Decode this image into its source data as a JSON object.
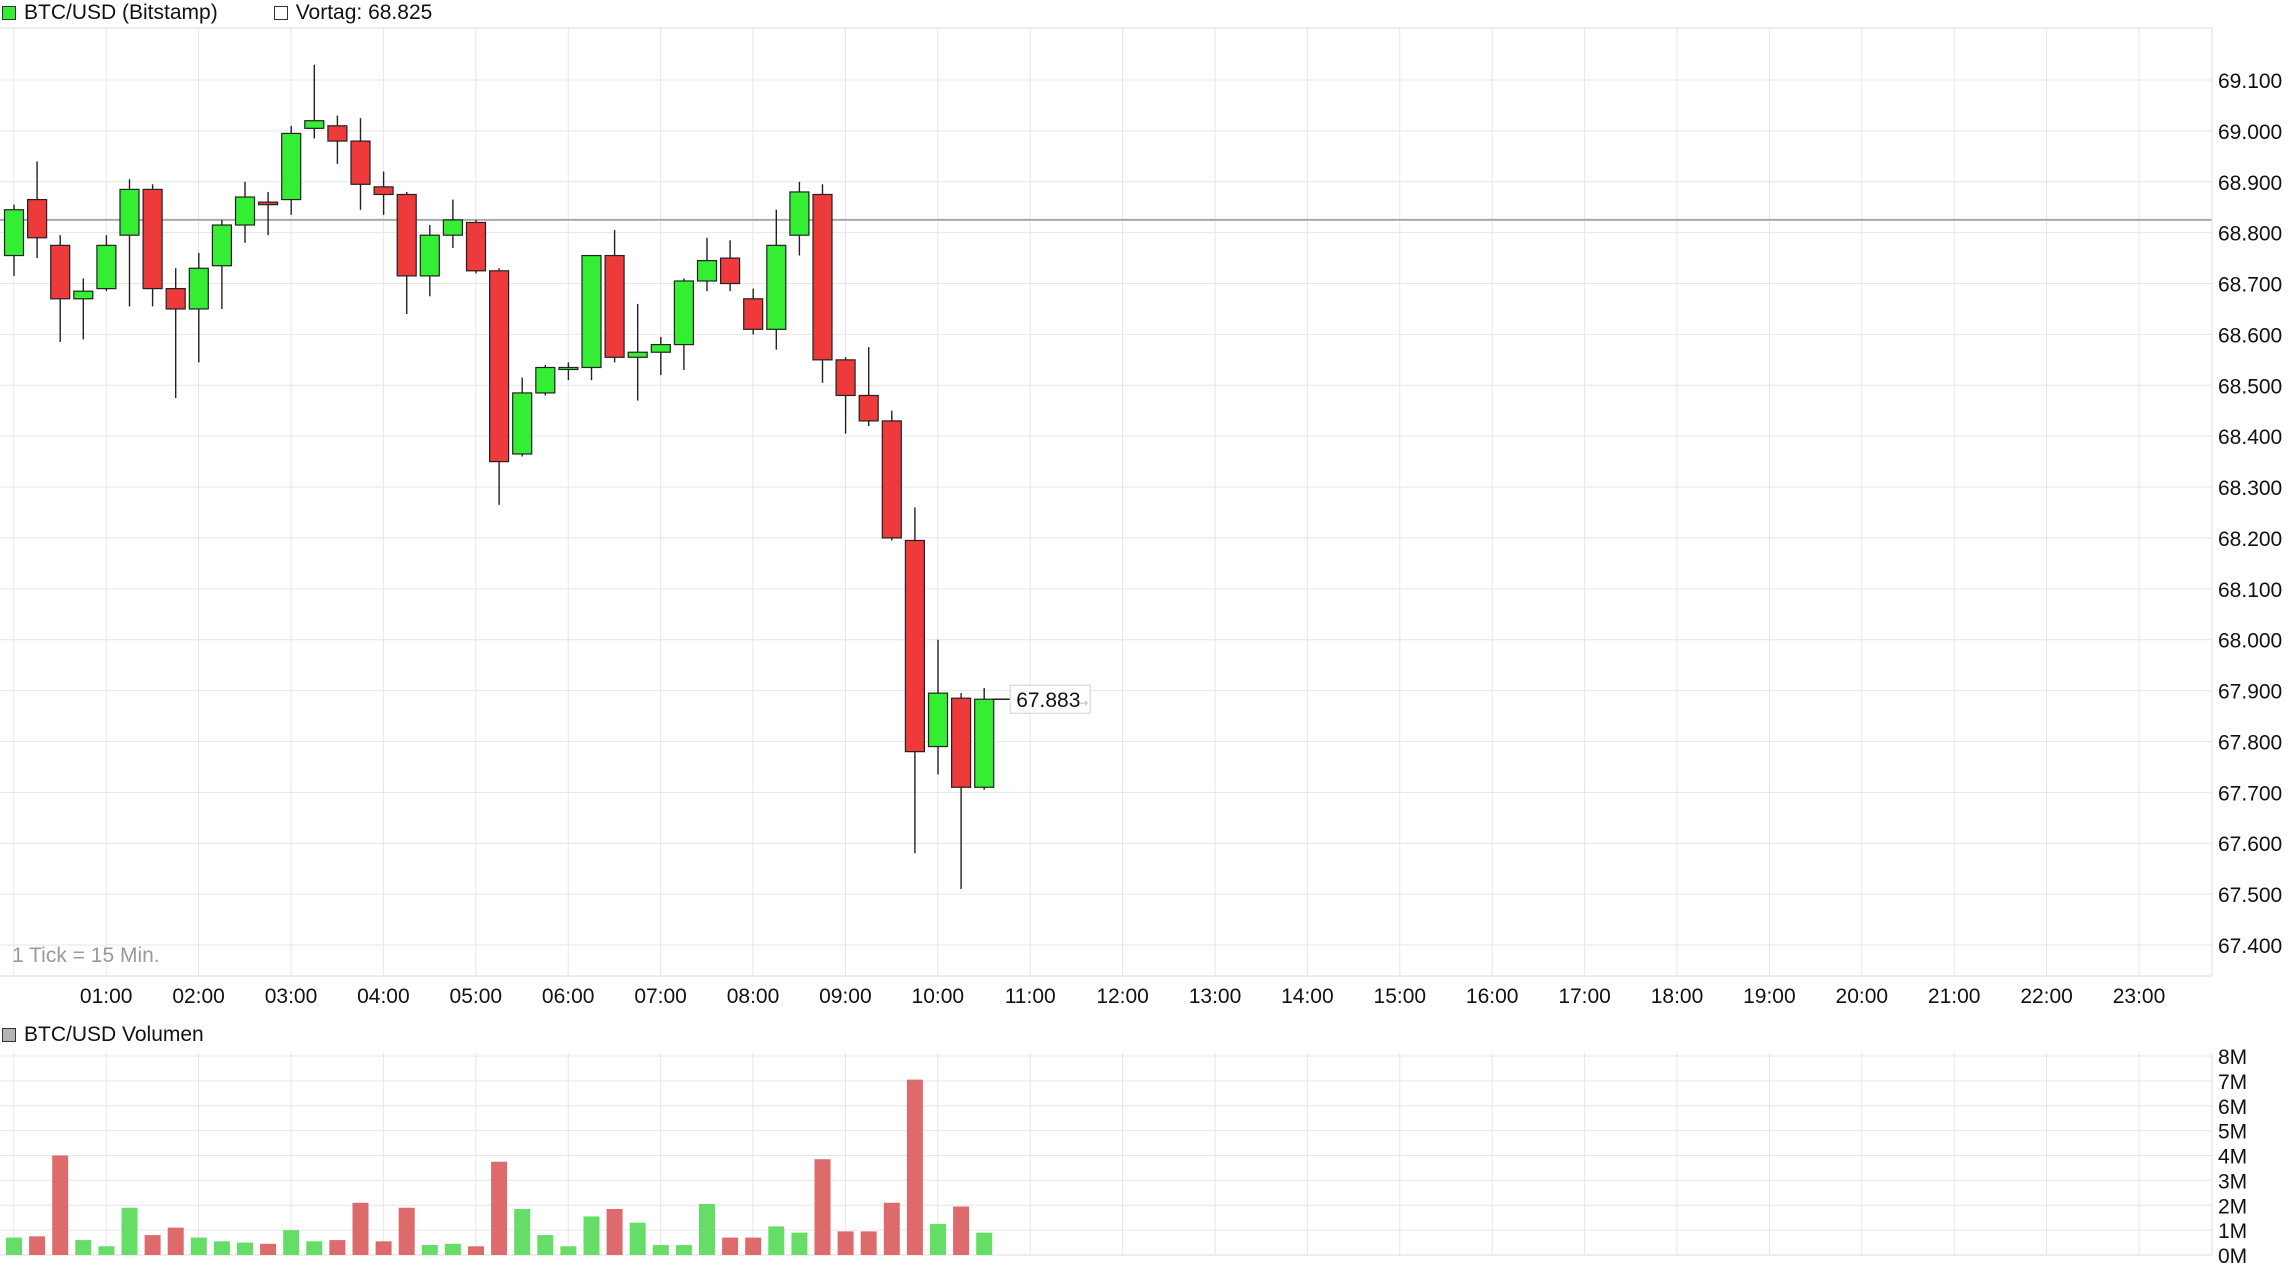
{
  "legend": {
    "series_label": "BTC/USD (Bitstamp)",
    "series_color": "#33ee33",
    "prev_close_label": "Vortag: 68.825"
  },
  "tick_note": "1 Tick = 15 Min.",
  "last_price_label": "67.883",
  "volume_legend": {
    "label": "BTC/USD Volumen",
    "color": "#b4b4b4"
  },
  "colors": {
    "up": "#33ee33",
    "down": "#ee3a3a",
    "vol_up": "#66dd66",
    "vol_down": "#dd6b6b",
    "grid": "#e6e6e6",
    "prev_close_line": "#aaaaaa"
  },
  "chart_data": [
    {
      "type": "candlestick",
      "interval": "15 min",
      "x_labels": [
        "01:00",
        "02:00",
        "03:00",
        "04:00",
        "05:00",
        "06:00",
        "07:00",
        "08:00",
        "09:00",
        "10:00",
        "11:00",
        "12:00",
        "13:00",
        "14:00",
        "15:00",
        "16:00",
        "17:00",
        "18:00",
        "19:00",
        "20:00",
        "21:00",
        "22:00",
        "23:00"
      ],
      "y_labels": [
        "69.100",
        "69.000",
        "68.900",
        "68.800",
        "68.700",
        "68.600",
        "68.500",
        "68.400",
        "68.300",
        "68.200",
        "68.100",
        "68.000",
        "67.900",
        "67.800",
        "67.700",
        "67.600",
        "67.500",
        "67.400"
      ],
      "ylim": [
        67370,
        69200
      ],
      "prev_close": 68825,
      "last": 67883,
      "candles": [
        {
          "o": 68755,
          "h": 68855,
          "l": 68715,
          "c": 68845
        },
        {
          "o": 68865,
          "h": 68940,
          "l": 68750,
          "c": 68790
        },
        {
          "o": 68775,
          "h": 68795,
          "l": 68585,
          "c": 68670
        },
        {
          "o": 68670,
          "h": 68710,
          "l": 68590,
          "c": 68685
        },
        {
          "o": 68690,
          "h": 68795,
          "l": 68685,
          "c": 68775
        },
        {
          "o": 68795,
          "h": 68905,
          "l": 68655,
          "c": 68885
        },
        {
          "o": 68885,
          "h": 68895,
          "l": 68655,
          "c": 68690
        },
        {
          "o": 68690,
          "h": 68730,
          "l": 68475,
          "c": 68650
        },
        {
          "o": 68650,
          "h": 68760,
          "l": 68545,
          "c": 68730
        },
        {
          "o": 68735,
          "h": 68825,
          "l": 68650,
          "c": 68815
        },
        {
          "o": 68815,
          "h": 68900,
          "l": 68780,
          "c": 68870
        },
        {
          "o": 68860,
          "h": 68880,
          "l": 68795,
          "c": 68855
        },
        {
          "o": 68865,
          "h": 69010,
          "l": 68835,
          "c": 68995
        },
        {
          "o": 69005,
          "h": 69130,
          "l": 68985,
          "c": 69020
        },
        {
          "o": 69010,
          "h": 69030,
          "l": 68935,
          "c": 68980
        },
        {
          "o": 68980,
          "h": 69025,
          "l": 68845,
          "c": 68895
        },
        {
          "o": 68890,
          "h": 68920,
          "l": 68835,
          "c": 68875
        },
        {
          "o": 68875,
          "h": 68880,
          "l": 68640,
          "c": 68715
        },
        {
          "o": 68715,
          "h": 68815,
          "l": 68675,
          "c": 68795
        },
        {
          "o": 68795,
          "h": 68865,
          "l": 68770,
          "c": 68825
        },
        {
          "o": 68820,
          "h": 68825,
          "l": 68720,
          "c": 68725
        },
        {
          "o": 68725,
          "h": 68730,
          "l": 68265,
          "c": 68350
        },
        {
          "o": 68365,
          "h": 68515,
          "l": 68360,
          "c": 68485
        },
        {
          "o": 68485,
          "h": 68540,
          "l": 68480,
          "c": 68535
        },
        {
          "o": 68535,
          "h": 68545,
          "l": 68510,
          "c": 68535
        },
        {
          "o": 68535,
          "h": 68755,
          "l": 68510,
          "c": 68755
        },
        {
          "o": 68755,
          "h": 68805,
          "l": 68545,
          "c": 68555
        },
        {
          "o": 68555,
          "h": 68660,
          "l": 68470,
          "c": 68565
        },
        {
          "o": 68565,
          "h": 68595,
          "l": 68520,
          "c": 68580
        },
        {
          "o": 68580,
          "h": 68710,
          "l": 68530,
          "c": 68705
        },
        {
          "o": 68705,
          "h": 68790,
          "l": 68685,
          "c": 68745
        },
        {
          "o": 68750,
          "h": 68785,
          "l": 68685,
          "c": 68700
        },
        {
          "o": 68670,
          "h": 68690,
          "l": 68600,
          "c": 68610
        },
        {
          "o": 68610,
          "h": 68845,
          "l": 68570,
          "c": 68775
        },
        {
          "o": 68795,
          "h": 68900,
          "l": 68755,
          "c": 68880
        },
        {
          "o": 68875,
          "h": 68895,
          "l": 68505,
          "c": 68550
        },
        {
          "o": 68550,
          "h": 68555,
          "l": 68405,
          "c": 68480
        },
        {
          "o": 68480,
          "h": 68575,
          "l": 68420,
          "c": 68430
        },
        {
          "o": 68430,
          "h": 68450,
          "l": 68195,
          "c": 68200
        },
        {
          "o": 68195,
          "h": 68260,
          "l": 67580,
          "c": 67780
        },
        {
          "o": 67790,
          "h": 68000,
          "l": 67735,
          "c": 67895
        },
        {
          "o": 67885,
          "h": 67895,
          "l": 67510,
          "c": 67710
        },
        {
          "o": 67710,
          "h": 67905,
          "l": 67705,
          "c": 67883
        }
      ]
    },
    {
      "type": "bar",
      "title": "BTC/USD Volumen",
      "y_labels": [
        "8M",
        "7M",
        "6M",
        "5M",
        "4M",
        "3M",
        "2M",
        "1M",
        "0M"
      ],
      "ylim": [
        0,
        8
      ],
      "unit": "M",
      "values": [
        0.7,
        0.75,
        4.0,
        0.6,
        0.35,
        1.9,
        0.8,
        1.1,
        0.7,
        0.55,
        0.5,
        0.45,
        1.0,
        0.55,
        0.6,
        2.1,
        0.55,
        1.9,
        0.4,
        0.45,
        0.35,
        3.75,
        1.85,
        0.8,
        0.35,
        1.55,
        1.85,
        1.3,
        0.4,
        0.4,
        2.05,
        0.7,
        0.7,
        1.15,
        0.9,
        3.85,
        0.95,
        0.95,
        2.1,
        7.05,
        1.25,
        1.95,
        0.9
      ]
    }
  ]
}
